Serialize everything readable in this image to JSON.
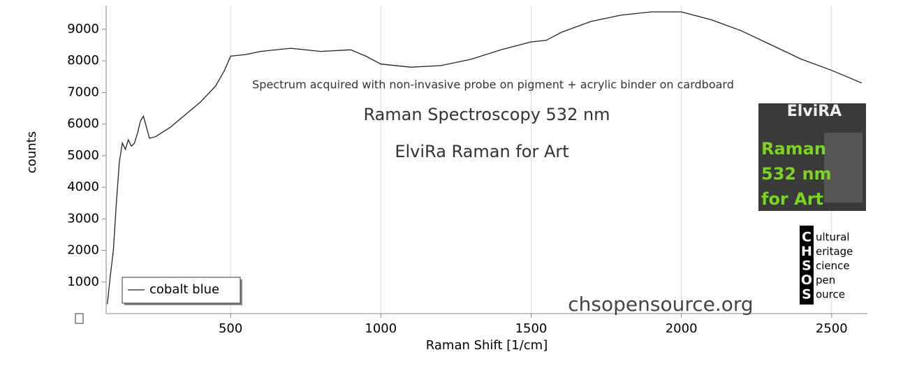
{
  "chart_data": {
    "type": "line",
    "x_label": "Raman Shift [1/cm]",
    "y_label": "counts",
    "annotations": [
      "Spectrum acquired with non-invasive probe on pigment + acrylic binder on cardboard",
      "Raman Spectroscopy 532 nm",
      "ElviRa Raman for Art",
      "chsopensource.org"
    ],
    "x": [
      90,
      100,
      110,
      120,
      130,
      140,
      150,
      160,
      170,
      180,
      190,
      200,
      210,
      220,
      230,
      250,
      300,
      350,
      400,
      450,
      480,
      500,
      550,
      600,
      700,
      800,
      900,
      950,
      1000,
      1100,
      1200,
      1300,
      1400,
      1500,
      1550,
      1600,
      1700,
      1800,
      1900,
      2000,
      2100,
      2200,
      2300,
      2400,
      2500,
      2600
    ],
    "series": [
      {
        "name": "cobalt blue",
        "color": "#222222",
        "values": [
          300,
          1200,
          2000,
          3500,
          4800,
          5400,
          5200,
          5500,
          5300,
          5400,
          5700,
          6100,
          6250,
          5900,
          5550,
          5600,
          5900,
          6300,
          6700,
          7200,
          7700,
          8150,
          8200,
          8300,
          8400,
          8300,
          8350,
          8150,
          7900,
          7800,
          7850,
          8050,
          8350,
          8600,
          8650,
          8900,
          9250,
          9450,
          9550,
          9550,
          9300,
          8950,
          8500,
          8050,
          7700,
          7300
        ]
      }
    ],
    "xlim": [
      86,
      2619
    ],
    "ylim": [
      0,
      9750
    ],
    "xticks": [
      500,
      1000,
      1500,
      2000,
      2500
    ],
    "yticks": [
      1000,
      2000,
      3000,
      4000,
      5000,
      6000,
      7000,
      8000,
      9000
    ],
    "grid": "x",
    "legend": "lower left"
  },
  "logos": {
    "elvira": [
      "ElviRA",
      "Raman",
      "532 nm",
      "for Art"
    ],
    "chsos": {
      "letters": [
        "C",
        "H",
        "S",
        "O",
        "S"
      ],
      "words": [
        "ultural",
        "eritage",
        "cience",
        "pen",
        "ource"
      ]
    }
  }
}
